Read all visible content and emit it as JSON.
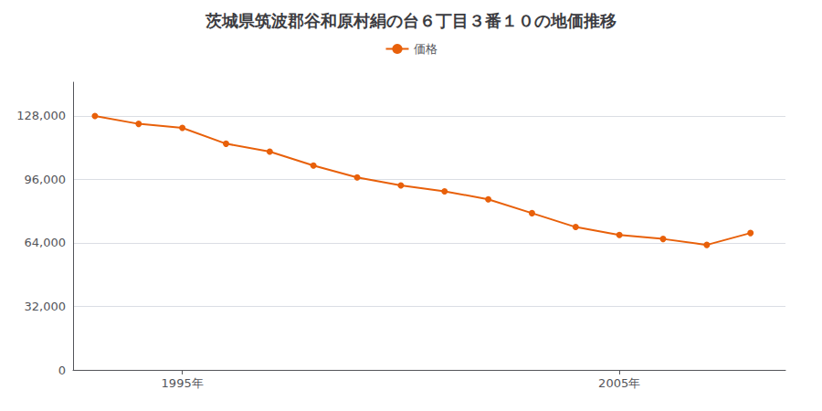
{
  "chart_data": {
    "type": "line",
    "title": "茨城県筑波郡谷和原村絹の台６丁目３番１０の地価推移",
    "x": [
      1993,
      1994,
      1995,
      1996,
      1997,
      1998,
      1999,
      2000,
      2001,
      2002,
      2003,
      2004,
      2005,
      2006,
      2007,
      2008
    ],
    "series": [
      {
        "name": "価格",
        "color": "#e8600a",
        "marker": "circle",
        "values": [
          128000,
          124000,
          122000,
          114000,
          110000,
          103000,
          97000,
          93000,
          90000,
          86000,
          79000,
          72000,
          68000,
          66000,
          63000,
          69000
        ]
      }
    ],
    "xlim": [
      1992.5,
      2008.8
    ],
    "xticks": [
      {
        "value": 1995,
        "label": "1995年"
      },
      {
        "value": 2005,
        "label": "2005年"
      }
    ],
    "ylim": [
      0,
      145000
    ],
    "yticks": [
      0,
      {
        "value": 32000,
        "label": "32,000"
      },
      {
        "value": 64000,
        "label": "64,000"
      },
      {
        "value": 96000,
        "label": "96,000"
      },
      {
        "value": 128000,
        "label": "128,000"
      }
    ],
    "grid": true,
    "legend": "top"
  }
}
